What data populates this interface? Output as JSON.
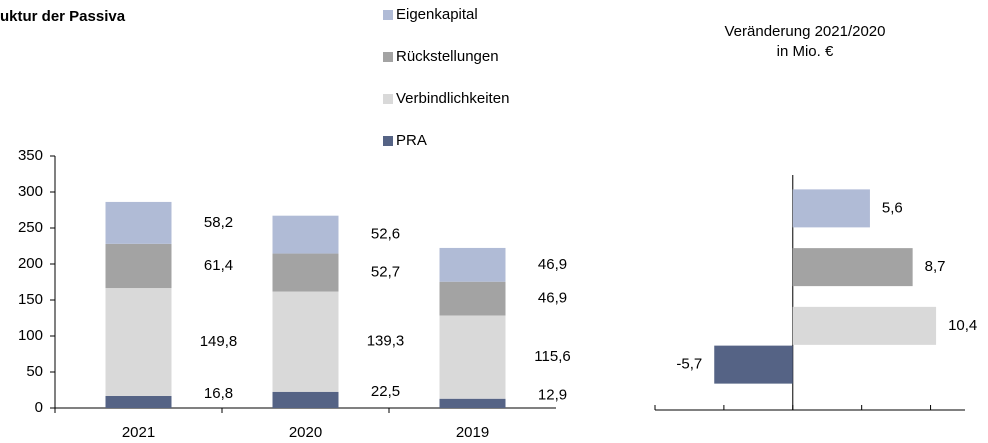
{
  "chart_data": [
    {
      "type": "stacked-bar",
      "title": "uktur der Passiva",
      "categories": [
        "2021",
        "2020",
        "2019"
      ],
      "series": [
        {
          "name": "PRA",
          "color": "#556385",
          "values": [
            16.8,
            22.5,
            12.9
          ],
          "value_labels": [
            "16,8",
            "22,5",
            "12,9"
          ]
        },
        {
          "name": "Verbindlichkeiten",
          "color": "#d9d9d9",
          "values": [
            149.8,
            139.3,
            115.6
          ],
          "value_labels": [
            "149,8",
            "139,3",
            "115,6"
          ]
        },
        {
          "name": "Rückstellungen",
          "color": "#a3a3a3",
          "values": [
            61.4,
            52.7,
            46.9
          ],
          "value_labels": [
            "61,4",
            "52,7",
            "46,9"
          ]
        },
        {
          "name": "Eigenkapital",
          "color": "#b0bbd6",
          "values": [
            58.2,
            52.6,
            46.9
          ],
          "value_labels": [
            "58,2",
            "52,6",
            "46,9"
          ]
        }
      ],
      "ylim": [
        0,
        350
      ],
      "yticks": [
        0,
        50,
        100,
        150,
        200,
        250,
        300,
        350
      ]
    },
    {
      "type": "hbar",
      "title": "Veränderung 2021/2020",
      "subtitle": "in Mio. €",
      "categories": [
        null,
        null,
        null,
        null
      ],
      "values": [
        5.6,
        8.7,
        10.4,
        -5.7
      ],
      "value_labels": [
        "5,6",
        "8,7",
        "10,4",
        "-5,7"
      ],
      "colors": [
        "#b0bbd6",
        "#a3a3a3",
        "#d9d9d9",
        "#556385"
      ],
      "xlim": [
        -10,
        12.5
      ],
      "xticks": [
        -10,
        -5,
        0,
        5,
        10
      ]
    }
  ]
}
